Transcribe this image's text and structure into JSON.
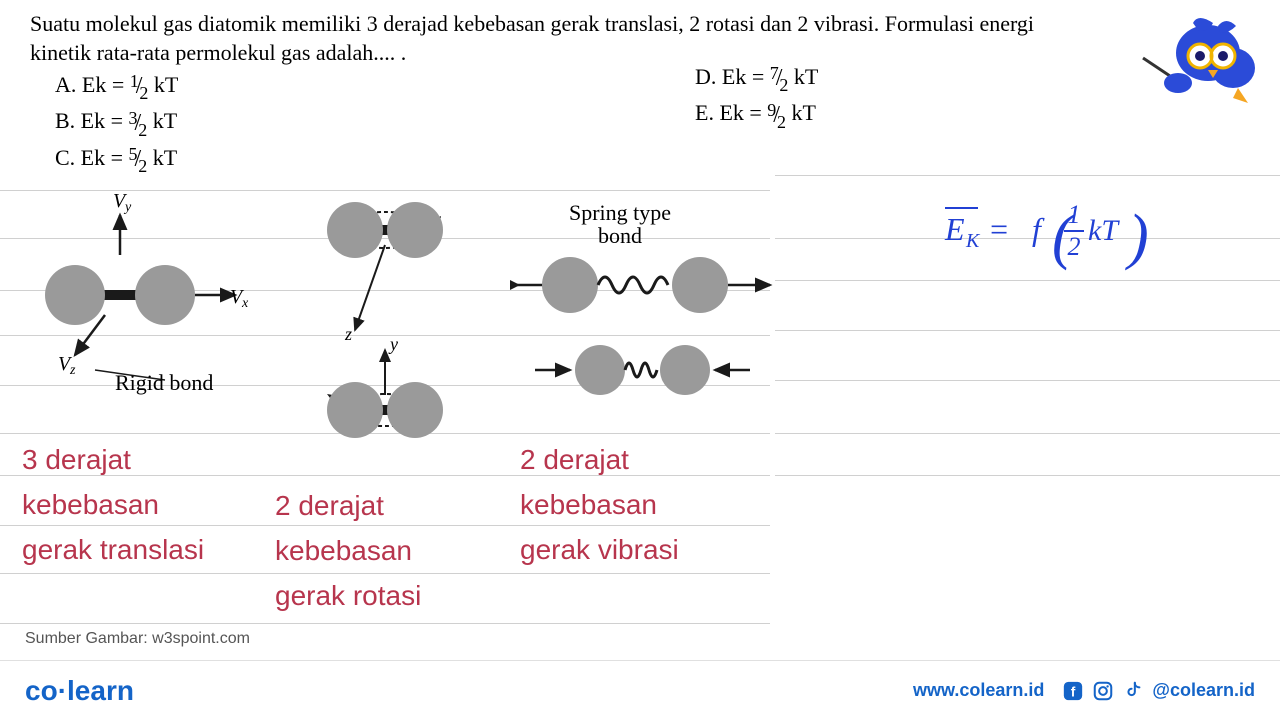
{
  "question": "Suatu molekul gas diatomik memiliki 3 derajad kebebasan gerak translasi, 2 rotasi dan 2 vibrasi. Formulasi energi kinetik rata-rata permolekul gas adalah.... .",
  "options": {
    "A": {
      "label": "A. Ek = ",
      "num": "1",
      "den": "2",
      "tail": " kT"
    },
    "B": {
      "label": "B. Ek = ",
      "num": "3",
      "den": "2",
      "tail": " kT"
    },
    "C": {
      "label": "C. Ek = ",
      "num": "5",
      "den": "2",
      "tail": " kT"
    },
    "D": {
      "label": "D. Ek = ",
      "num": "7",
      "den": "2",
      "tail": " kT"
    },
    "E": {
      "label": "E. Ek = ",
      "num": "9",
      "den": "2",
      "tail": " kT"
    }
  },
  "diagram": {
    "vy": "Vy",
    "vx": "Vx",
    "vz": "Vz",
    "z": "z",
    "y": "y",
    "rigid_bond": "Rigid bond",
    "spring_top": "Spring type",
    "spring_bottom": "bond",
    "atom_color": "#9a9a9a",
    "line_color": "#1a1a1a"
  },
  "annotations": {
    "a1_l1": "3 derajat",
    "a1_l2": "kebebasan",
    "a1_l3": "gerak translasi",
    "a2_l1": "2 derajat",
    "a2_l2": "kebebasan",
    "a2_l3": "gerak rotasi",
    "a3_l1": "2 derajat",
    "a3_l2": "kebebasan",
    "a3_l3": "gerak vibrasi",
    "color": "#b7354d"
  },
  "formula": {
    "color": "#2140d4",
    "text_ek": "E",
    "text_k": "K",
    "text_eq": " = f",
    "frac_num": "1",
    "frac_den": "2",
    "tail": "kT"
  },
  "source": "Sumber Gambar: w3spoint.com",
  "footer": {
    "brand_co": "co",
    "brand_learn": "learn",
    "url": "www.colearn.id",
    "handle": "@colearn.id"
  },
  "hlines": {
    "left_y": [
      15,
      63,
      115,
      160,
      210,
      258,
      300,
      350,
      398,
      448
    ],
    "right_y": [
      0,
      63,
      105,
      155,
      205,
      258,
      300
    ]
  }
}
